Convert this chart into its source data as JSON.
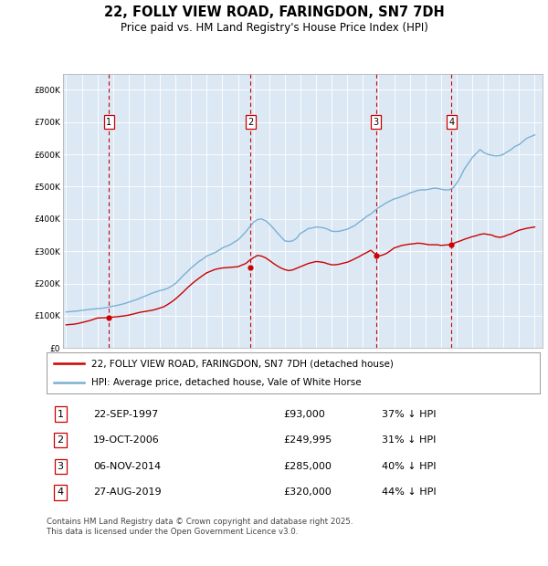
{
  "title": "22, FOLLY VIEW ROAD, FARINGDON, SN7 7DH",
  "subtitle": "Price paid vs. HM Land Registry's House Price Index (HPI)",
  "plot_bg_color": "#dce9f5",
  "ylim": [
    0,
    850000
  ],
  "yticks": [
    0,
    100000,
    200000,
    300000,
    400000,
    500000,
    600000,
    700000,
    800000
  ],
  "legend_line1": "22, FOLLY VIEW ROAD, FARINGDON, SN7 7DH (detached house)",
  "legend_line2": "HPI: Average price, detached house, Vale of White Horse",
  "footer": "Contains HM Land Registry data © Crown copyright and database right 2025.\nThis data is licensed under the Open Government Licence v3.0.",
  "sale_dates": [
    1997.73,
    2006.8,
    2014.85,
    2019.66
  ],
  "sale_prices": [
    93000,
    249995,
    285000,
    320000
  ],
  "sale_labels": [
    "1",
    "2",
    "3",
    "4"
  ],
  "sale_info": [
    [
      "1",
      "22-SEP-1997",
      "£93,000",
      "37% ↓ HPI"
    ],
    [
      "2",
      "19-OCT-2006",
      "£249,995",
      "31% ↓ HPI"
    ],
    [
      "3",
      "06-NOV-2014",
      "£285,000",
      "40% ↓ HPI"
    ],
    [
      "4",
      "27-AUG-2019",
      "£320,000",
      "44% ↓ HPI"
    ]
  ],
  "red_color": "#cc0000",
  "blue_color": "#7ab0d4",
  "hpi_x": [
    1995,
    1995.25,
    1995.5,
    1995.75,
    1996,
    1996.25,
    1996.5,
    1996.75,
    1997,
    1997.25,
    1997.5,
    1997.75,
    1998,
    1998.25,
    1998.5,
    1998.75,
    1999,
    1999.25,
    1999.5,
    1999.75,
    2000,
    2000.25,
    2000.5,
    2000.75,
    2001,
    2001.25,
    2001.5,
    2001.75,
    2002,
    2002.25,
    2002.5,
    2002.75,
    2003,
    2003.25,
    2003.5,
    2003.75,
    2004,
    2004.25,
    2004.5,
    2004.75,
    2005,
    2005.25,
    2005.5,
    2005.75,
    2006,
    2006.25,
    2006.5,
    2006.75,
    2007,
    2007.25,
    2007.5,
    2007.75,
    2008,
    2008.25,
    2008.5,
    2008.75,
    2009,
    2009.25,
    2009.5,
    2009.75,
    2010,
    2010.25,
    2010.5,
    2010.75,
    2011,
    2011.25,
    2011.5,
    2011.75,
    2012,
    2012.25,
    2012.5,
    2012.75,
    2013,
    2013.25,
    2013.5,
    2013.75,
    2014,
    2014.25,
    2014.5,
    2014.75,
    2015,
    2015.25,
    2015.5,
    2015.75,
    2016,
    2016.25,
    2016.5,
    2016.75,
    2017,
    2017.25,
    2017.5,
    2017.75,
    2018,
    2018.25,
    2018.5,
    2018.75,
    2019,
    2019.25,
    2019.5,
    2019.75,
    2020,
    2020.25,
    2020.5,
    2020.75,
    2021,
    2021.25,
    2021.5,
    2021.75,
    2022,
    2022.25,
    2022.5,
    2022.75,
    2023,
    2023.25,
    2023.5,
    2023.75,
    2024,
    2024.25,
    2024.5,
    2024.75,
    2025
  ],
  "hpi_y": [
    112000,
    113000,
    114000,
    115000,
    117000,
    118000,
    120000,
    121000,
    122000,
    123000,
    125000,
    127000,
    130000,
    132000,
    135000,
    138000,
    142000,
    146000,
    150000,
    155000,
    160000,
    165000,
    170000,
    174000,
    178000,
    181000,
    185000,
    192000,
    200000,
    212000,
    225000,
    236000,
    248000,
    258000,
    268000,
    276000,
    285000,
    290000,
    295000,
    302000,
    310000,
    315000,
    320000,
    328000,
    335000,
    347000,
    360000,
    375000,
    390000,
    398000,
    400000,
    395000,
    385000,
    372000,
    358000,
    345000,
    332000,
    330000,
    332000,
    340000,
    355000,
    362000,
    370000,
    372000,
    375000,
    374000,
    372000,
    368000,
    362000,
    361000,
    362000,
    365000,
    368000,
    374000,
    380000,
    390000,
    398000,
    408000,
    415000,
    425000,
    435000,
    442000,
    450000,
    456000,
    462000,
    465000,
    470000,
    474000,
    480000,
    484000,
    488000,
    490000,
    490000,
    492000,
    495000,
    495000,
    492000,
    490000,
    490000,
    495000,
    510000,
    530000,
    555000,
    572000,
    590000,
    602000,
    615000,
    605000,
    600000,
    597000,
    595000,
    596000,
    600000,
    608000,
    615000,
    625000,
    630000,
    640000,
    650000,
    655000,
    660000
  ],
  "price_x": [
    1995,
    1995.25,
    1995.5,
    1995.75,
    1996,
    1996.25,
    1996.5,
    1996.75,
    1997,
    1997.25,
    1997.5,
    1997.75,
    1998,
    1998.25,
    1998.5,
    1998.75,
    1999,
    1999.25,
    1999.5,
    1999.75,
    2000,
    2000.25,
    2000.5,
    2000.75,
    2001,
    2001.25,
    2001.5,
    2001.75,
    2002,
    2002.25,
    2002.5,
    2002.75,
    2003,
    2003.25,
    2003.5,
    2003.75,
    2004,
    2004.25,
    2004.5,
    2004.75,
    2005,
    2005.25,
    2005.5,
    2005.75,
    2006,
    2006.25,
    2006.5,
    2006.75,
    2007,
    2007.25,
    2007.5,
    2007.75,
    2008,
    2008.25,
    2008.5,
    2008.75,
    2009,
    2009.25,
    2009.5,
    2009.75,
    2010,
    2010.25,
    2010.5,
    2010.75,
    2011,
    2011.25,
    2011.5,
    2011.75,
    2012,
    2012.25,
    2012.5,
    2012.75,
    2013,
    2013.25,
    2013.5,
    2013.75,
    2014,
    2014.25,
    2014.5,
    2014.75,
    2015,
    2015.25,
    2015.5,
    2015.75,
    2016,
    2016.25,
    2016.5,
    2016.75,
    2017,
    2017.25,
    2017.5,
    2017.75,
    2018,
    2018.25,
    2018.5,
    2018.75,
    2019,
    2019.25,
    2019.5,
    2019.75,
    2020,
    2020.25,
    2020.5,
    2020.75,
    2021,
    2021.25,
    2021.5,
    2021.75,
    2022,
    2022.25,
    2022.5,
    2022.75,
    2023,
    2023.25,
    2023.5,
    2023.75,
    2024,
    2024.25,
    2024.5,
    2024.75,
    2025
  ],
  "price_y": [
    72000,
    73000,
    74000,
    76000,
    79000,
    82000,
    85000,
    89000,
    93000,
    93500,
    94000,
    95000,
    96000,
    97000,
    98500,
    100000,
    102000,
    105000,
    108000,
    111000,
    113000,
    115000,
    117000,
    120000,
    124000,
    128000,
    135000,
    143000,
    152000,
    163000,
    174000,
    186000,
    197000,
    207000,
    216000,
    225000,
    233000,
    238000,
    243000,
    246000,
    248000,
    249000,
    249995,
    251000,
    252000,
    257000,
    262000,
    272000,
    280000,
    287000,
    285000,
    280000,
    272000,
    263000,
    255000,
    248000,
    243000,
    240000,
    242000,
    247000,
    252000,
    257000,
    262000,
    265000,
    268000,
    267000,
    265000,
    261000,
    258000,
    258000,
    260000,
    263000,
    266000,
    271000,
    277000,
    283000,
    290000,
    296000,
    303000,
    293000,
    285000,
    288000,
    293000,
    301000,
    310000,
    314000,
    318000,
    320000,
    322000,
    323000,
    325000,
    324000,
    322000,
    320000,
    320000,
    320000,
    318000,
    319000,
    320000,
    323000,
    328000,
    332000,
    337000,
    341000,
    345000,
    348000,
    352000,
    354000,
    352000,
    350000,
    345000,
    343000,
    345000,
    350000,
    354000,
    360000,
    365000,
    368000,
    371000,
    373000,
    375000
  ]
}
